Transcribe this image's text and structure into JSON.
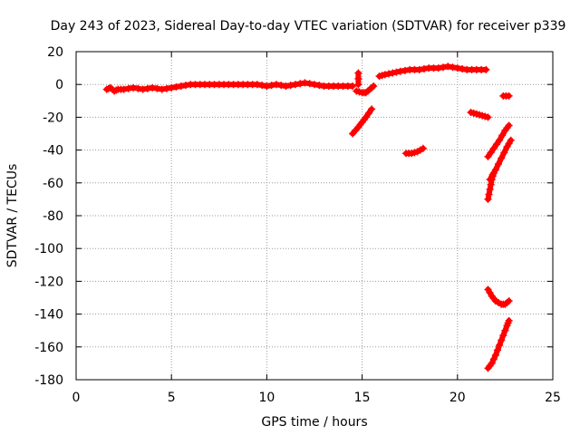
{
  "chart_data": {
    "type": "scatter",
    "title": "Day 243 of 2023, Sidereal Day-to-day VTEC variation (SDTVAR) for receiver p339",
    "xlabel": "GPS time / hours",
    "ylabel": "SDTVAR / TECUs",
    "xlim": [
      0,
      25
    ],
    "ylim": [
      -180,
      20
    ],
    "xticks": [
      0,
      5,
      10,
      15,
      20,
      25
    ],
    "yticks": [
      -180,
      -160,
      -140,
      -120,
      -100,
      -80,
      -60,
      -40,
      -20,
      0,
      20
    ],
    "grid": true,
    "marker": "plus",
    "color": "#ff0000",
    "tracks": [
      {
        "points": [
          [
            1.6,
            -3
          ],
          [
            1.8,
            -2
          ],
          [
            2.0,
            -4
          ],
          [
            2.2,
            -3
          ],
          [
            2.5,
            -3
          ],
          [
            3.0,
            -2
          ],
          [
            3.5,
            -3
          ],
          [
            4.0,
            -2
          ],
          [
            4.5,
            -3
          ],
          [
            5.0,
            -2
          ],
          [
            5.5,
            -1
          ],
          [
            6.0,
            0
          ],
          [
            6.5,
            0
          ],
          [
            7.0,
            0
          ],
          [
            7.5,
            0
          ],
          [
            8.0,
            0
          ],
          [
            8.5,
            0
          ],
          [
            9.0,
            0
          ],
          [
            9.5,
            0
          ],
          [
            10.0,
            -1
          ],
          [
            10.5,
            0
          ],
          [
            11.0,
            -1
          ],
          [
            11.5,
            0
          ],
          [
            12.0,
            1
          ],
          [
            12.5,
            0
          ],
          [
            13.0,
            -1
          ],
          [
            13.5,
            -1
          ],
          [
            14.0,
            -1
          ],
          [
            14.5,
            -1
          ]
        ]
      },
      {
        "points": [
          [
            14.7,
            -4
          ],
          [
            15.0,
            -5
          ],
          [
            15.2,
            -5
          ],
          [
            15.4,
            -3
          ],
          [
            15.6,
            -1
          ]
        ]
      },
      {
        "points": [
          [
            14.8,
            7
          ],
          [
            14.8,
            0
          ]
        ]
      },
      {
        "points": [
          [
            14.5,
            -30
          ],
          [
            14.8,
            -26
          ],
          [
            15.0,
            -23
          ],
          [
            15.2,
            -20
          ],
          [
            15.5,
            -15
          ]
        ]
      },
      {
        "points": [
          [
            15.9,
            5
          ],
          [
            16.2,
            6
          ],
          [
            16.6,
            7
          ],
          [
            17.0,
            8
          ],
          [
            17.5,
            9
          ],
          [
            18.0,
            9
          ],
          [
            18.5,
            10
          ],
          [
            19.0,
            10
          ],
          [
            19.5,
            11
          ],
          [
            20.0,
            10
          ],
          [
            20.5,
            9
          ],
          [
            21.0,
            9
          ],
          [
            21.5,
            9
          ]
        ]
      },
      {
        "points": [
          [
            17.3,
            -42
          ],
          [
            17.6,
            -42
          ],
          [
            17.9,
            -41
          ],
          [
            18.2,
            -39
          ]
        ]
      },
      {
        "points": [
          [
            20.7,
            -17
          ],
          [
            21.0,
            -18
          ],
          [
            21.3,
            -19
          ],
          [
            21.6,
            -20
          ]
        ]
      },
      {
        "points": [
          [
            22.4,
            -7
          ],
          [
            22.7,
            -7
          ]
        ]
      },
      {
        "points": [
          [
            21.6,
            -44
          ],
          [
            21.9,
            -39
          ],
          [
            22.2,
            -34
          ],
          [
            22.5,
            -28
          ],
          [
            22.7,
            -25
          ]
        ]
      },
      {
        "points": [
          [
            21.7,
            -58
          ],
          [
            22.0,
            -52
          ],
          [
            22.3,
            -45
          ],
          [
            22.6,
            -38
          ],
          [
            22.8,
            -34
          ]
        ]
      },
      {
        "points": [
          [
            21.6,
            -70
          ],
          [
            21.7,
            -64
          ],
          [
            21.8,
            -58
          ],
          [
            21.9,
            -54
          ]
        ]
      },
      {
        "points": [
          [
            21.6,
            -125
          ],
          [
            21.8,
            -129
          ],
          [
            22.0,
            -132
          ],
          [
            22.3,
            -134
          ],
          [
            22.5,
            -134
          ],
          [
            22.7,
            -132
          ]
        ]
      },
      {
        "points": [
          [
            21.6,
            -173
          ],
          [
            21.8,
            -170
          ],
          [
            22.0,
            -165
          ],
          [
            22.2,
            -159
          ],
          [
            22.4,
            -153
          ],
          [
            22.6,
            -147
          ],
          [
            22.7,
            -144
          ]
        ]
      }
    ]
  }
}
